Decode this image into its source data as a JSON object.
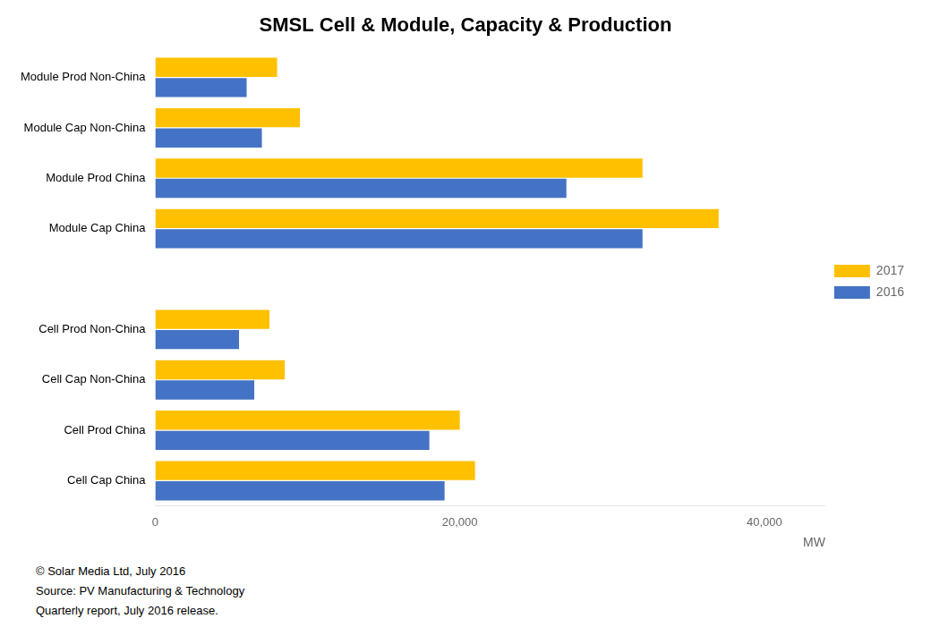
{
  "chart_data": {
    "type": "bar",
    "orientation": "horizontal",
    "title": "SMSL Cell & Module, Capacity & Production",
    "categories": [
      "Module Prod Non-China",
      "Module Cap Non-China",
      "Module Prod China",
      "Module Cap China",
      null,
      "Cell Prod Non-China",
      "Cell Cap Non-China",
      "Cell Prod China",
      "Cell Cap China"
    ],
    "series": [
      {
        "name": "2017",
        "color": "#FFC000",
        "values": [
          8000,
          9500,
          32000,
          37000,
          0,
          7500,
          8500,
          20000,
          21000
        ]
      },
      {
        "name": "2016",
        "color": "#4472C4",
        "values": [
          6000,
          7000,
          27000,
          32000,
          0,
          5500,
          6500,
          18000,
          19000
        ]
      }
    ],
    "xlim": [
      0,
      44000
    ],
    "xticks": [
      0,
      {
        "value": 20000,
        "label": "20,000"
      },
      {
        "value": 40000,
        "label": "40,000"
      }
    ],
    "xlabel": "MW",
    "grid": false,
    "legend": "right",
    "annotations": [
      "© Solar Media Ltd, July 2016",
      "Source: PV Manufacturing & Technology",
      "Quarterly report, July 2016 release."
    ]
  }
}
